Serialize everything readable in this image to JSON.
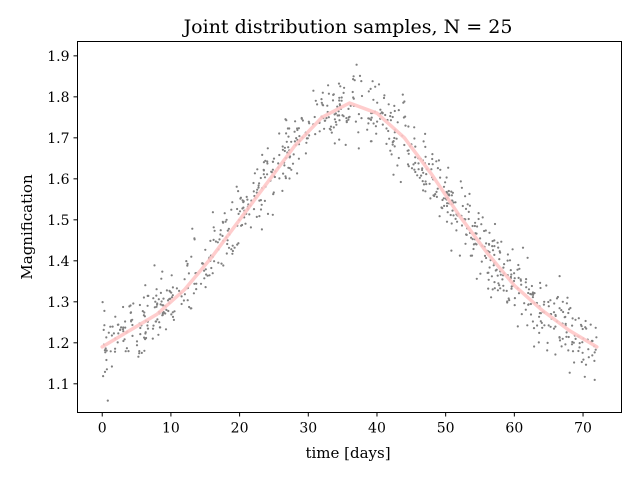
{
  "chart_data": {
    "type": "scatter",
    "title": "Joint distribution samples, N = 25",
    "xlabel": "time [days]",
    "ylabel": "Magnification",
    "xlim": [
      -3.6,
      75.6
    ],
    "ylim": [
      1.03,
      1.935
    ],
    "xticks": [
      0,
      10,
      20,
      30,
      40,
      50,
      60,
      70
    ],
    "xtick_labels": [
      "0",
      "10",
      "20",
      "30",
      "40",
      "50",
      "60",
      "70"
    ],
    "yticks": [
      1.1,
      1.2,
      1.3,
      1.4,
      1.5,
      1.6,
      1.7,
      1.8,
      1.9
    ],
    "ytick_labels": [
      "1.1",
      "1.2",
      "1.3",
      "1.4",
      "1.5",
      "1.6",
      "1.7",
      "1.8",
      "1.9"
    ],
    "grid": false,
    "legend": "none",
    "series": [
      {
        "kind": "scatter",
        "color": "#7f7f7f",
        "n_points": 900,
        "x_range": [
          0,
          72
        ],
        "noise_sd": 0.04
      },
      {
        "kind": "line",
        "color": "#ffc8c8",
        "x": [
          0,
          4,
          8,
          12,
          16,
          20,
          24,
          28,
          32,
          36,
          40,
          44,
          48,
          52,
          56,
          60,
          64,
          68,
          72
        ],
        "y": [
          1.19,
          1.23,
          1.27,
          1.33,
          1.41,
          1.5,
          1.59,
          1.68,
          1.75,
          1.785,
          1.76,
          1.7,
          1.61,
          1.51,
          1.42,
          1.34,
          1.28,
          1.23,
          1.19
        ]
      }
    ]
  }
}
